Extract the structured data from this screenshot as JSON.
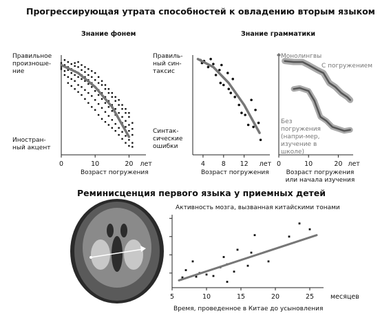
{
  "title_top": "Прогрессирующая утрата способностей к овладению вторым языком",
  "title_bottom": "Реминисценция первого языка у приемных детей",
  "chart_data": [
    {
      "type": "scatter",
      "title": "Знание фонем",
      "xlabel": "Возраст погружения",
      "ylabel_top": "Правильное произноше-ние",
      "ylabel_bottom": "Иностран-ный акцент",
      "x_ticks": [
        "0",
        "10",
        "20"
      ],
      "x_unit": "лет",
      "xlim": [
        0,
        25
      ],
      "ylim": [
        0,
        100
      ],
      "trend": [
        [
          0,
          90
        ],
        [
          5,
          82
        ],
        [
          10,
          68
        ],
        [
          15,
          48
        ],
        [
          20,
          18
        ]
      ],
      "points": [
        [
          0,
          92
        ],
        [
          0,
          88
        ],
        [
          0,
          86
        ],
        [
          1,
          95
        ],
        [
          1,
          84
        ],
        [
          1,
          90
        ],
        [
          1,
          80
        ],
        [
          2,
          93
        ],
        [
          2,
          85
        ],
        [
          2,
          78
        ],
        [
          2,
          88
        ],
        [
          2,
          72
        ],
        [
          3,
          91
        ],
        [
          3,
          82
        ],
        [
          3,
          76
        ],
        [
          3,
          86
        ],
        [
          3,
          69
        ],
        [
          4,
          89
        ],
        [
          4,
          80
        ],
        [
          4,
          74
        ],
        [
          4,
          92
        ],
        [
          4,
          66
        ],
        [
          4,
          84
        ],
        [
          5,
          88
        ],
        [
          5,
          78
        ],
        [
          5,
          70
        ],
        [
          5,
          82
        ],
        [
          5,
          63
        ],
        [
          5,
          93
        ],
        [
          6,
          85
        ],
        [
          6,
          76
        ],
        [
          6,
          68
        ],
        [
          6,
          80
        ],
        [
          6,
          60
        ],
        [
          6,
          90
        ],
        [
          7,
          83
        ],
        [
          7,
          74
        ],
        [
          7,
          65
        ],
        [
          7,
          78
        ],
        [
          7,
          56
        ],
        [
          7,
          88
        ],
        [
          8,
          80
        ],
        [
          8,
          71
        ],
        [
          8,
          62
        ],
        [
          8,
          75
        ],
        [
          8,
          52
        ],
        [
          8,
          86
        ],
        [
          9,
          78
        ],
        [
          9,
          68
        ],
        [
          9,
          59
        ],
        [
          9,
          72
        ],
        [
          9,
          48
        ],
        [
          9,
          84
        ],
        [
          10,
          75
        ],
        [
          10,
          64
        ],
        [
          10,
          55
        ],
        [
          10,
          68
        ],
        [
          10,
          45
        ],
        [
          10,
          82
        ],
        [
          11,
          72
        ],
        [
          11,
          60
        ],
        [
          11,
          51
        ],
        [
          11,
          65
        ],
        [
          11,
          40
        ],
        [
          11,
          78
        ],
        [
          12,
          70
        ],
        [
          12,
          56
        ],
        [
          12,
          47
        ],
        [
          12,
          62
        ],
        [
          12,
          36
        ],
        [
          12,
          74
        ],
        [
          13,
          66
        ],
        [
          13,
          52
        ],
        [
          13,
          43
        ],
        [
          13,
          58
        ],
        [
          13,
          33
        ],
        [
          13,
          70
        ],
        [
          14,
          62
        ],
        [
          14,
          48
        ],
        [
          14,
          39
        ],
        [
          14,
          54
        ],
        [
          14,
          30
        ],
        [
          14,
          66
        ],
        [
          15,
          58
        ],
        [
          15,
          44
        ],
        [
          15,
          35
        ],
        [
          15,
          50
        ],
        [
          15,
          27
        ],
        [
          15,
          62
        ],
        [
          16,
          54
        ],
        [
          16,
          40
        ],
        [
          16,
          31
        ],
        [
          16,
          46
        ],
        [
          16,
          24
        ],
        [
          16,
          58
        ],
        [
          17,
          50
        ],
        [
          17,
          36
        ],
        [
          17,
          27
        ],
        [
          17,
          42
        ],
        [
          17,
          20
        ],
        [
          17,
          55
        ],
        [
          18,
          46
        ],
        [
          18,
          32
        ],
        [
          18,
          23
        ],
        [
          18,
          38
        ],
        [
          18,
          16
        ],
        [
          18,
          50
        ],
        [
          19,
          42
        ],
        [
          19,
          28
        ],
        [
          19,
          19
        ],
        [
          19,
          34
        ],
        [
          19,
          12
        ],
        [
          19,
          46
        ],
        [
          20,
          38
        ],
        [
          20,
          24
        ],
        [
          20,
          15
        ],
        [
          20,
          30
        ],
        [
          20,
          9
        ],
        [
          20,
          42
        ],
        [
          21,
          32
        ],
        [
          21,
          20
        ],
        [
          21,
          12
        ],
        [
          21,
          26
        ],
        [
          21,
          8
        ]
      ]
    },
    {
      "type": "scatter",
      "title": "Знание грамматики",
      "xlabel": "Возраст погружения",
      "ylabel_top": "Правиль-ный син-таксис",
      "ylabel_bottom": "Синтак-сические ошибки",
      "x_ticks": [
        "4",
        "8",
        "12"
      ],
      "x_unit": "лет",
      "xlim": [
        2,
        17
      ],
      "ylim": [
        0,
        100
      ],
      "trend": [
        [
          3,
          96
        ],
        [
          6,
          88
        ],
        [
          9,
          72
        ],
        [
          12,
          50
        ],
        [
          15,
          22
        ]
      ],
      "points": [
        [
          3.5,
          95
        ],
        [
          3.8,
          92
        ],
        [
          4.2,
          94
        ],
        [
          5,
          88
        ],
        [
          5.5,
          96
        ],
        [
          6,
          91
        ],
        [
          6.5,
          80
        ],
        [
          7.2,
          85
        ],
        [
          7.6,
          90
        ],
        [
          7.4,
          72
        ],
        [
          8,
          70
        ],
        [
          8.8,
          82
        ],
        [
          9,
          66
        ],
        [
          9.4,
          62
        ],
        [
          9.8,
          76
        ],
        [
          10.2,
          58
        ],
        [
          10.6,
          60
        ],
        [
          11,
          50
        ],
        [
          11.5,
          42
        ],
        [
          12.2,
          40
        ],
        [
          12.8,
          30
        ],
        [
          13.4,
          55
        ],
        [
          13.8,
          28
        ],
        [
          14.2,
          45
        ],
        [
          14.8,
          32
        ],
        [
          15.2,
          15
        ]
      ]
    },
    {
      "type": "line",
      "xlabel": "Возраст погружения или начала изучения",
      "x_ticks": [
        "0",
        "10",
        "20"
      ],
      "x_unit": "лет",
      "xlim": [
        0,
        25
      ],
      "ylim": [
        0,
        100
      ],
      "series": [
        {
          "name": "Монолингвы",
          "points": [
            [
              0,
              100
            ]
          ]
        },
        {
          "name": "С погружением",
          "points": [
            [
              2,
              94
            ],
            [
              5,
              93
            ],
            [
              8,
              93
            ],
            [
              10,
              90
            ],
            [
              13,
              85
            ],
            [
              15,
              82
            ],
            [
              17,
              72
            ],
            [
              19,
              68
            ],
            [
              21,
              62
            ],
            [
              23,
              58
            ],
            [
              24,
              55
            ]
          ]
        },
        {
          "name": "Без погружения (напри-мер, изучение в школе)",
          "points": [
            [
              5,
              66
            ],
            [
              7,
              67
            ],
            [
              10,
              64
            ],
            [
              12,
              54
            ],
            [
              14,
              38
            ],
            [
              16,
              34
            ],
            [
              18,
              28
            ],
            [
              20,
              26
            ],
            [
              22,
              24
            ],
            [
              24,
              25
            ]
          ]
        }
      ]
    },
    {
      "type": "scatter",
      "title": "Активность мозга, вызванная китайскими тонами",
      "xlabel": "Время, проведенное в Китае до усыновления",
      "x_ticks": [
        "5",
        "10",
        "15",
        "20",
        "25"
      ],
      "x_unit": "месяцев",
      "xlim": [
        5,
        27
      ],
      "ylim": [
        0,
        100
      ],
      "trend": [
        [
          6,
          10
        ],
        [
          26,
          72
        ]
      ],
      "points": [
        [
          6.5,
          14
        ],
        [
          7,
          24
        ],
        [
          8,
          36
        ],
        [
          9,
          20
        ],
        [
          10,
          18
        ],
        [
          11,
          16
        ],
        [
          12,
          28
        ],
        [
          12.5,
          42
        ],
        [
          13,
          32
        ],
        [
          14,
          22
        ],
        [
          14.5,
          52
        ],
        [
          16,
          30
        ],
        [
          16.5,
          48
        ],
        [
          17,
          72
        ],
        [
          19,
          36
        ],
        [
          22,
          70
        ],
        [
          23.5,
          88
        ],
        [
          25,
          80
        ],
        [
          13,
          8
        ],
        [
          8.5,
          15
        ]
      ]
    }
  ]
}
